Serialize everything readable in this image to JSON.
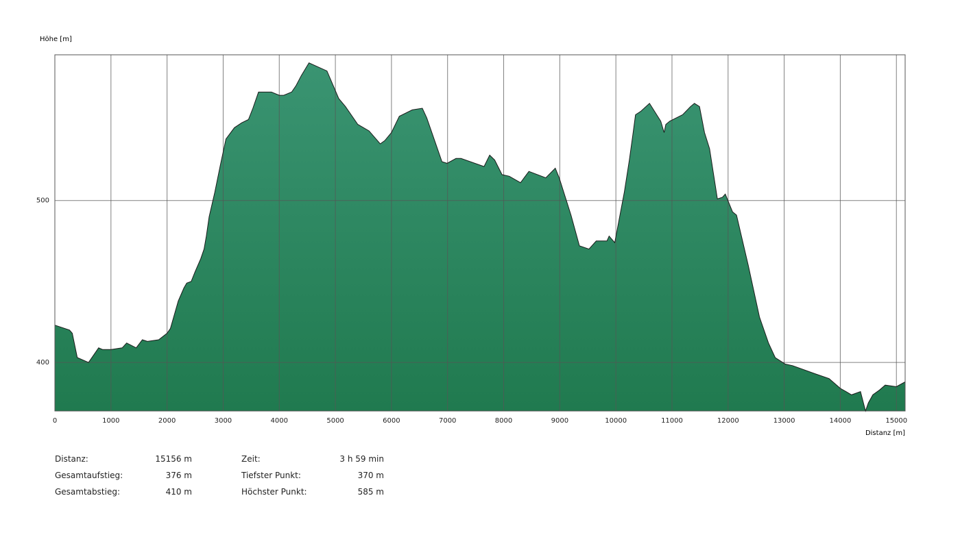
{
  "chart_data": {
    "type": "area",
    "ylabel": "Höhe [m]",
    "xlabel": "Distanz [m]",
    "xlim": [
      0,
      15156
    ],
    "ylim": [
      370,
      590
    ],
    "xticks": [
      0,
      1000,
      2000,
      3000,
      4000,
      5000,
      6000,
      7000,
      8000,
      9000,
      10000,
      11000,
      12000,
      13000,
      14000,
      15000
    ],
    "yticks": [
      400,
      500
    ],
    "grid": true,
    "colors": {
      "fill_top": "#3a9472",
      "fill_bottom": "#207a4f",
      "stroke": "#1a1a1a",
      "grid": "#555555"
    },
    "x": [
      0,
      260,
      310,
      400,
      600,
      780,
      850,
      1000,
      1200,
      1280,
      1450,
      1560,
      1650,
      1850,
      2000,
      2060,
      2200,
      2300,
      2350,
      2430,
      2500,
      2600,
      2660,
      2700,
      2750,
      2850,
      2950,
      3050,
      3200,
      3330,
      3450,
      3530,
      3630,
      3860,
      4000,
      4080,
      4220,
      4300,
      4390,
      4530,
      4850,
      5060,
      5180,
      5400,
      5600,
      5800,
      5880,
      6000,
      6140,
      6370,
      6550,
      6630,
      6900,
      6990,
      7150,
      7240,
      7650,
      7750,
      7840,
      7970,
      8100,
      8300,
      8450,
      8750,
      8920,
      8990,
      9200,
      9350,
      9520,
      9650,
      9840,
      9880,
      9980,
      10150,
      10240,
      10300,
      10350,
      10440,
      10600,
      10800,
      10860,
      10890,
      10960,
      11190,
      11330,
      11400,
      11490,
      11580,
      11670,
      11810,
      11900,
      11950,
      12080,
      12150,
      12360,
      12560,
      12720,
      12840,
      13020,
      13150,
      13550,
      13800,
      14000,
      14100,
      14200,
      14360,
      14450,
      14500,
      14580,
      14700,
      14800,
      15000,
      15156
    ],
    "values": [
      423,
      420,
      418,
      403,
      400,
      409,
      408,
      408,
      409,
      412,
      409,
      414,
      413,
      414,
      418,
      421,
      438,
      446,
      449,
      450,
      456,
      464,
      470,
      478,
      490,
      505,
      522,
      538,
      545,
      548,
      550,
      557,
      567,
      567,
      565,
      565,
      567,
      571,
      577,
      585,
      580,
      563,
      558,
      547,
      543,
      535,
      537,
      542,
      552,
      556,
      557,
      551,
      524,
      523,
      526,
      526,
      521,
      528,
      525,
      516,
      515,
      511,
      518,
      514,
      520,
      514,
      491,
      472,
      470,
      475,
      475,
      478,
      474,
      505,
      525,
      540,
      553,
      555,
      560,
      549,
      542,
      547,
      549,
      553,
      558,
      560,
      558,
      542,
      532,
      501,
      502,
      504,
      493,
      491,
      460,
      428,
      412,
      403,
      399,
      398,
      393,
      390,
      384,
      382,
      380,
      382,
      370,
      375,
      380,
      383,
      386,
      385,
      388
    ]
  },
  "stats": {
    "left": [
      {
        "label": "Distanz:",
        "value": "15156 m"
      },
      {
        "label": "Gesamtaufstieg:",
        "value": "376 m"
      },
      {
        "label": "Gesamtabstieg:",
        "value": "410 m"
      }
    ],
    "right": [
      {
        "label": "Zeit:",
        "value": "3 h 59 min"
      },
      {
        "label": "Tiefster Punkt:",
        "value": "370 m"
      },
      {
        "label": "Höchster Punkt:",
        "value": "585 m"
      }
    ]
  }
}
